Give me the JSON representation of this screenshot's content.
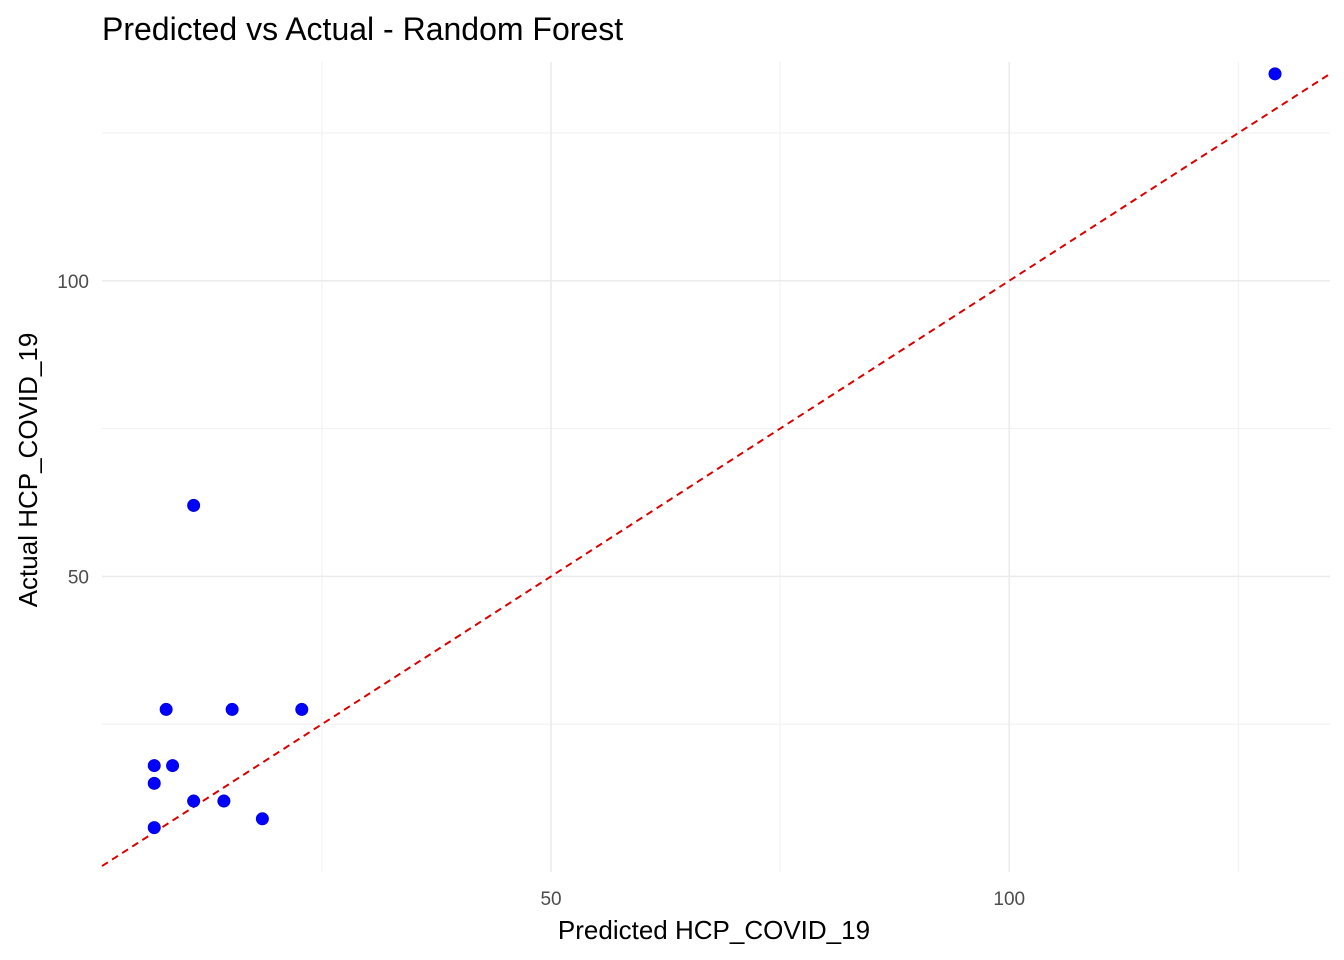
{
  "chart_data": {
    "type": "scatter",
    "title": "Predicted vs Actual - Random Forest",
    "xlabel": "Predicted HCP_COVID_19",
    "ylabel": "Actual HCP_COVID_19",
    "xlim": [
      1.0,
      135.0
    ],
    "ylim": [
      0.0,
      137.0
    ],
    "x_ticks": [
      50,
      100
    ],
    "y_ticks": [
      50,
      100
    ],
    "x_minor": [
      25,
      75,
      125
    ],
    "y_minor": [
      25,
      75,
      125
    ],
    "grid": true,
    "point_color": "#0000ff",
    "reference_line": {
      "type": "y=x",
      "color": "#dd0000",
      "style": "dashed"
    },
    "points": [
      {
        "x": 129.0,
        "y": 135.0
      },
      {
        "x": 11.0,
        "y": 62.0
      },
      {
        "x": 8.0,
        "y": 27.5
      },
      {
        "x": 15.2,
        "y": 27.5
      },
      {
        "x": 22.8,
        "y": 27.5
      },
      {
        "x": 6.7,
        "y": 18.0
      },
      {
        "x": 8.7,
        "y": 18.0
      },
      {
        "x": 6.7,
        "y": 15.0
      },
      {
        "x": 11.0,
        "y": 12.0
      },
      {
        "x": 14.3,
        "y": 12.0
      },
      {
        "x": 18.5,
        "y": 9.0
      },
      {
        "x": 6.7,
        "y": 7.5
      }
    ]
  }
}
